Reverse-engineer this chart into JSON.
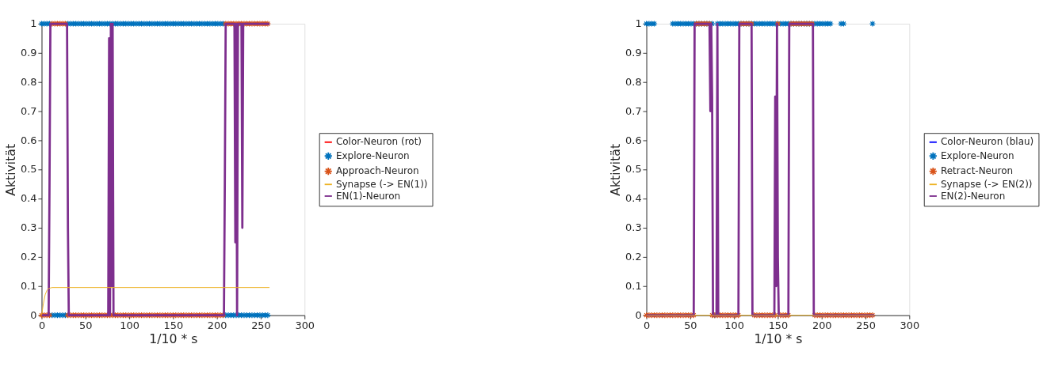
{
  "chart_data": [
    {
      "type": "line",
      "xlabel": "1/10 * s",
      "ylabel": "Aktivität",
      "xlim": [
        0,
        300
      ],
      "xticks": [
        0,
        50,
        100,
        150,
        200,
        250,
        300
      ],
      "ylim": [
        0,
        1
      ],
      "yticks": [
        0,
        0.1,
        0.2,
        0.3,
        0.4,
        0.5,
        0.6,
        0.7,
        0.8,
        0.9,
        1
      ],
      "grid": false,
      "legend": "right",
      "x": [
        0,
        3,
        6,
        9,
        12,
        15,
        18,
        21,
        24,
        27,
        30,
        33,
        36,
        39,
        42,
        45,
        48,
        51,
        54,
        57,
        60,
        63,
        66,
        69,
        72,
        75,
        78,
        81,
        84,
        87,
        90,
        93,
        96,
        99,
        102,
        105,
        108,
        111,
        114,
        117,
        120,
        123,
        126,
        129,
        132,
        135,
        138,
        141,
        144,
        147,
        150,
        153,
        156,
        159,
        162,
        165,
        168,
        171,
        174,
        177,
        180,
        183,
        186,
        189,
        192,
        195,
        198,
        201,
        204,
        207,
        210,
        213,
        216,
        219,
        222,
        225,
        228,
        231,
        234,
        237,
        240,
        243,
        246,
        249,
        252,
        255,
        258
      ],
      "series": [
        {
          "name": "Color-Neuron (rot)",
          "color": "#ff0000",
          "values": [
            null,
            null,
            null,
            null,
            null,
            null,
            null,
            null,
            null,
            null,
            null,
            null,
            null,
            null,
            null,
            null,
            null,
            null,
            null,
            null,
            null,
            null,
            null,
            null,
            null,
            null,
            null,
            null,
            null,
            null,
            null,
            null,
            null,
            null,
            null,
            null,
            null,
            null,
            null,
            null,
            null,
            null,
            null,
            null,
            null,
            null,
            null,
            null,
            null,
            null,
            null,
            null,
            null,
            null,
            null,
            null,
            null,
            null,
            null,
            null,
            null,
            null,
            null,
            null,
            null,
            null,
            null,
            null,
            null,
            null,
            null,
            null,
            null,
            null,
            null,
            null,
            null,
            null,
            null,
            null,
            null,
            null,
            null,
            null,
            null,
            null,
            null
          ]
        },
        {
          "name": "Explore-Neuron",
          "color": "#0072bd",
          "type": "scatter",
          "marker": "cross",
          "values": [
            1,
            1,
            1,
            1,
            0,
            0,
            0,
            0,
            0,
            0,
            1,
            1,
            1,
            1,
            1,
            1,
            1,
            1,
            1,
            1,
            1,
            1,
            1,
            1,
            1,
            1,
            1,
            1,
            1,
            1,
            1,
            1,
            1,
            1,
            1,
            1,
            1,
            1,
            1,
            1,
            1,
            1,
            1,
            1,
            1,
            1,
            1,
            1,
            1,
            1,
            1,
            1,
            1,
            1,
            1,
            1,
            1,
            1,
            1,
            1,
            1,
            1,
            1,
            1,
            1,
            1,
            1,
            1,
            1,
            1,
            0,
            0,
            0,
            0,
            0,
            0,
            0,
            0,
            0,
            0,
            0,
            0,
            0,
            0,
            0,
            0,
            0
          ]
        },
        {
          "name": "Approach-Neuron",
          "color": "#d95319",
          "type": "scatter",
          "marker": "cross",
          "values": [
            0,
            0,
            0,
            0,
            1,
            1,
            1,
            1,
            1,
            1,
            0,
            0,
            0,
            0,
            0,
            0,
            0,
            0,
            0,
            0,
            0,
            0,
            0,
            0,
            0,
            0,
            0,
            0,
            0,
            0,
            0,
            0,
            0,
            0,
            0,
            0,
            0,
            0,
            0,
            0,
            0,
            0,
            0,
            0,
            0,
            0,
            0,
            0,
            0,
            0,
            0,
            0,
            0,
            0,
            0,
            0,
            0,
            0,
            0,
            0,
            0,
            0,
            0,
            0,
            0,
            0,
            0,
            0,
            0,
            0,
            1,
            1,
            1,
            1,
            1,
            1,
            1,
            1,
            1,
            1,
            1,
            1,
            1,
            1,
            1,
            1,
            1
          ]
        },
        {
          "name": "Synapse (-> EN(1))",
          "color": "#edb120",
          "x": [
            0,
            2,
            4,
            6,
            8,
            12,
            260
          ],
          "values": [
            0,
            0.04,
            0.07,
            0.085,
            0.092,
            0.095,
            0.095
          ]
        },
        {
          "name": "EN(1)-Neuron",
          "color": "#7e2f8e",
          "x": [
            0,
            8,
            9,
            10,
            29,
            30,
            31,
            76,
            77,
            78,
            79,
            80,
            81,
            82,
            208,
            209,
            210,
            220,
            221,
            222,
            223,
            224,
            228,
            229,
            230,
            260
          ],
          "values": [
            0,
            0,
            0.45,
            1,
            1,
            0.3,
            0,
            0,
            0.95,
            0,
            1,
            0.1,
            1,
            0,
            0,
            0.45,
            1,
            1,
            0.25,
            1,
            0,
            1,
            1,
            0.3,
            1,
            1
          ]
        }
      ]
    },
    {
      "type": "line",
      "xlabel": "1/10 * s",
      "ylabel": "Aktivität",
      "xlim": [
        0,
        300
      ],
      "xticks": [
        0,
        50,
        100,
        150,
        200,
        250,
        300
      ],
      "ylim": [
        0,
        1
      ],
      "yticks": [
        0,
        0.1,
        0.2,
        0.3,
        0.4,
        0.5,
        0.6,
        0.7,
        0.8,
        0.9,
        1
      ],
      "grid": false,
      "legend": "right",
      "x": [
        0,
        3,
        6,
        9,
        12,
        15,
        18,
        21,
        24,
        27,
        30,
        33,
        36,
        39,
        42,
        45,
        48,
        51,
        54,
        57,
        60,
        63,
        66,
        69,
        72,
        75,
        78,
        81,
        84,
        87,
        90,
        93,
        96,
        99,
        102,
        105,
        108,
        111,
        114,
        117,
        120,
        123,
        126,
        129,
        132,
        135,
        138,
        141,
        144,
        147,
        150,
        153,
        156,
        159,
        162,
        165,
        168,
        171,
        174,
        177,
        180,
        183,
        186,
        189,
        192,
        195,
        198,
        201,
        204,
        207,
        210,
        213,
        216,
        219,
        222,
        225,
        228,
        231,
        234,
        237,
        240,
        243,
        246,
        249,
        252,
        255,
        258
      ],
      "series": [
        {
          "name": "Color-Neuron (blau)",
          "color": "#0000ff",
          "values": [
            null,
            null,
            null,
            null,
            null,
            null,
            null,
            null,
            null,
            null,
            null,
            null,
            null,
            null,
            null,
            null,
            null,
            null,
            null,
            null,
            null,
            null,
            null,
            null,
            null,
            null,
            null,
            null,
            null,
            null,
            null,
            null,
            null,
            null,
            null,
            null,
            null,
            null,
            null,
            null,
            null,
            null,
            null,
            null,
            null,
            null,
            null,
            null,
            null,
            null,
            null,
            null,
            null,
            null,
            null,
            null,
            null,
            null,
            null,
            null,
            null,
            null,
            null,
            null,
            null,
            null,
            null,
            null,
            null,
            null,
            null,
            null,
            null,
            null,
            null,
            null,
            null,
            null,
            null,
            null,
            null,
            null,
            null,
            null,
            null,
            null,
            null
          ]
        },
        {
          "name": "Explore-Neuron",
          "color": "#0072bd",
          "type": "scatter",
          "marker": "cross",
          "values": [
            1,
            1,
            1,
            1,
            null,
            null,
            null,
            null,
            null,
            null,
            1,
            1,
            1,
            1,
            1,
            1,
            1,
            1,
            1,
            1,
            1,
            1,
            1,
            1,
            1,
            1,
            0,
            1,
            1,
            1,
            1,
            1,
            1,
            1,
            1,
            1,
            1,
            1,
            1,
            1,
            1,
            1,
            1,
            1,
            1,
            1,
            1,
            1,
            1,
            1,
            1,
            1,
            1,
            1,
            1,
            1,
            1,
            1,
            1,
            1,
            1,
            1,
            1,
            1,
            1,
            1,
            1,
            1,
            1,
            1,
            1,
            null,
            null,
            null,
            1,
            1,
            null,
            null,
            null,
            null,
            null,
            null,
            null,
            null,
            null,
            null,
            1
          ]
        },
        {
          "name": "Retract-Neuron",
          "color": "#d95319",
          "type": "scatter",
          "marker": "cross",
          "values": [
            0,
            0,
            0,
            0,
            0,
            0,
            0,
            0,
            0,
            0,
            0,
            0,
            0,
            0,
            0,
            0,
            0,
            0,
            0,
            1,
            1,
            1,
            1,
            1,
            1,
            0,
            0,
            0,
            0,
            0,
            0,
            0,
            0,
            0,
            0,
            0,
            1,
            1,
            1,
            1,
            1,
            0,
            0,
            0,
            0,
            0,
            0,
            0,
            0,
            0,
            1,
            0,
            0,
            0,
            0,
            1,
            1,
            1,
            1,
            1,
            1,
            1,
            1,
            1,
            0,
            0,
            0,
            0,
            0,
            0,
            0,
            0,
            0,
            0,
            0,
            0,
            0,
            0,
            0,
            0,
            0,
            0,
            0,
            0,
            0,
            0,
            0
          ]
        },
        {
          "name": "Synapse (-> EN(2))",
          "color": "#edb120",
          "x": [
            0,
            260
          ],
          "values": [
            0,
            0
          ]
        },
        {
          "name": "EN(2)-Neuron",
          "color": "#7e2f8e",
          "x": [
            0,
            54,
            55,
            72,
            73,
            74,
            75,
            76,
            80,
            81,
            82,
            105,
            106,
            120,
            121,
            146,
            147,
            148,
            149,
            150,
            151,
            162,
            163,
            190,
            191,
            260
          ],
          "values": [
            0,
            0,
            1,
            1,
            0.7,
            1,
            0.75,
            0,
            0,
            1,
            0,
            0,
            1,
            1,
            0,
            0,
            0.75,
            0.1,
            1,
            0.2,
            0,
            0,
            1,
            1,
            0,
            0
          ]
        }
      ]
    }
  ]
}
